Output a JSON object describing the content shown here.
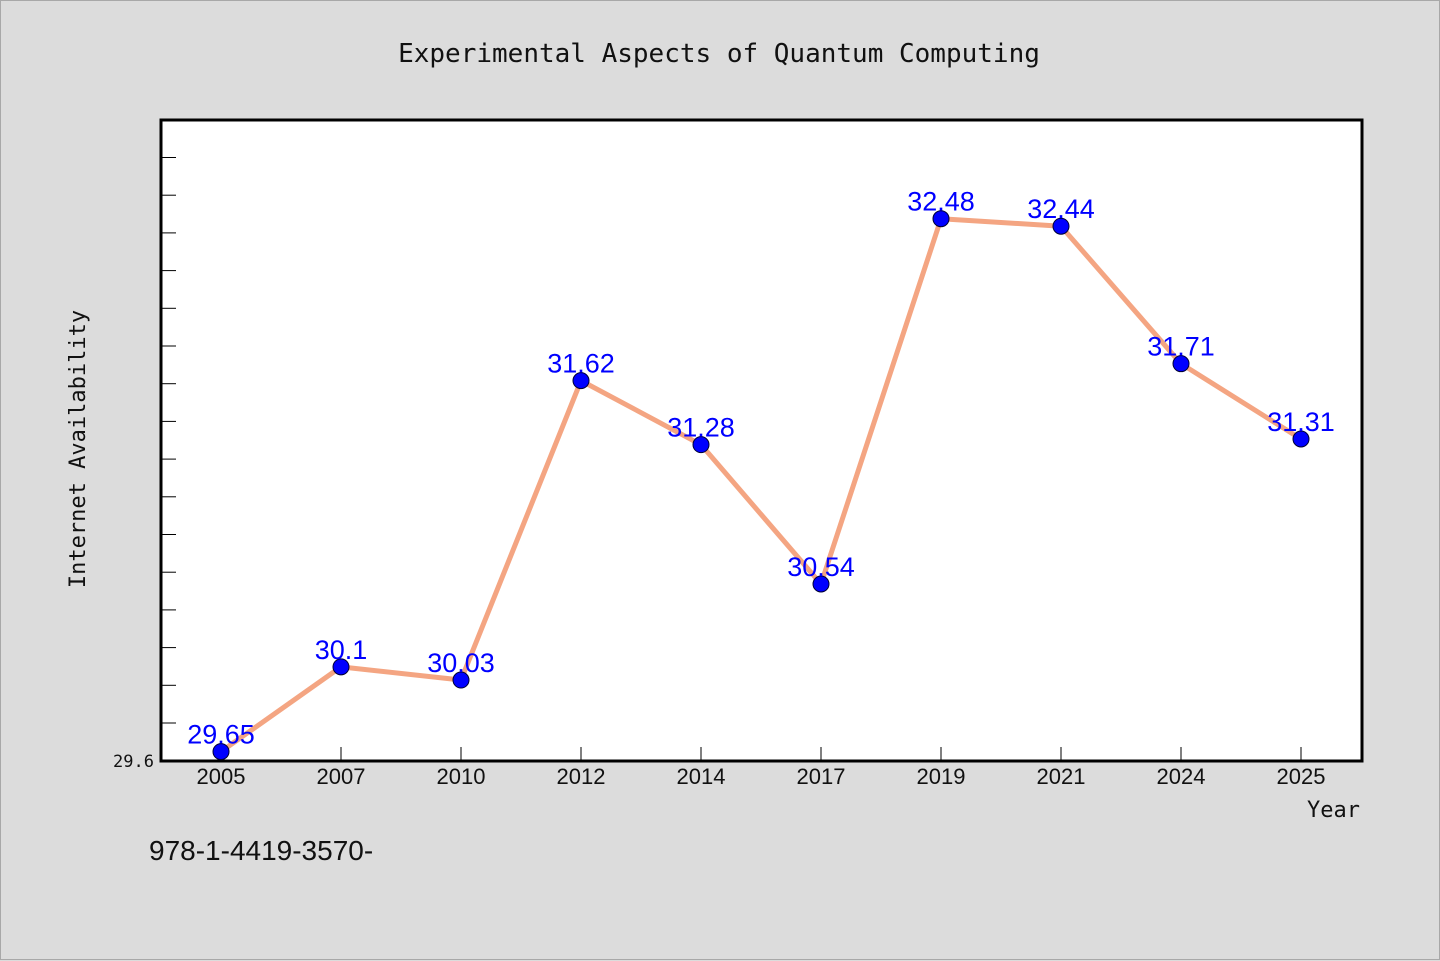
{
  "chart_data": {
    "type": "line",
    "title": "Experimental Aspects of Quantum Computing",
    "xlabel": "Year",
    "ylabel": "Internet Availability",
    "categories": [
      "2005",
      "2007",
      "2010",
      "2012",
      "2014",
      "2017",
      "2019",
      "2021",
      "2024",
      "2025"
    ],
    "series": [
      {
        "values": [
          29.65,
          30.1,
          30.03,
          31.62,
          31.28,
          30.54,
          32.48,
          32.44,
          31.71,
          31.31
        ]
      }
    ],
    "data_labels": [
      "29.65",
      "30.1",
      "30.03",
      "31.62",
      "31.28",
      "30.54",
      "32.48",
      "32.44",
      "31.71",
      "31.31"
    ],
    "y_tick_labels": [
      "29.6"
    ],
    "ylim": [
      29.6,
      33.0
    ],
    "grid": false,
    "line_color": "#f4a582",
    "marker_color": "#0000ff",
    "label_color": "#0000ff"
  },
  "footer_text": "978-1-4419-3570-"
}
